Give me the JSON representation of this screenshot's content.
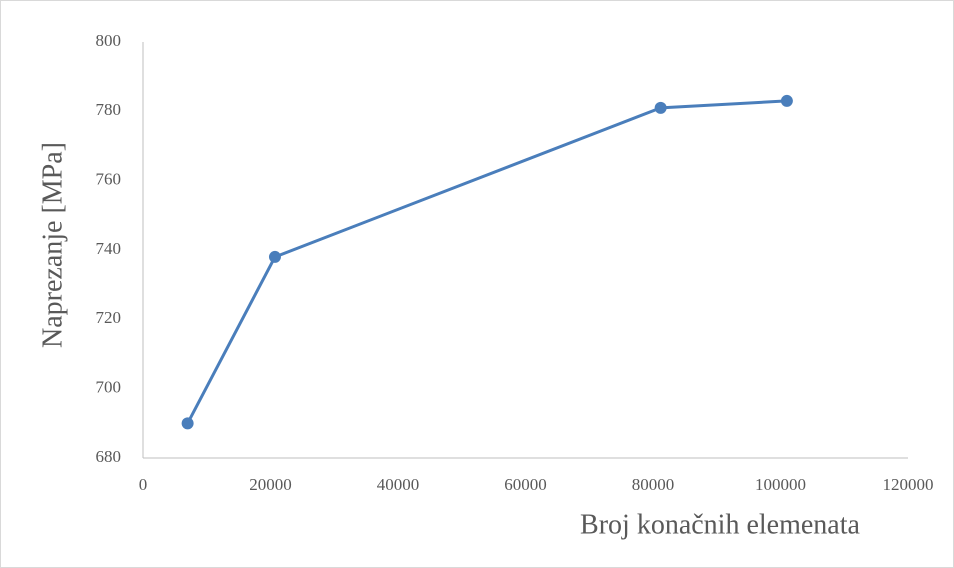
{
  "chart_data": {
    "type": "line",
    "x_label": "Broj konačnih elemenata",
    "y_label": "Naprezanje [MPa]",
    "x": [
      7000,
      20700,
      81200,
      101000
    ],
    "series": [
      {
        "name": "Naprezanje",
        "color": "#4a7ebb",
        "values": [
          690,
          738,
          781,
          783
        ]
      }
    ],
    "xlim": [
      0,
      120000
    ],
    "xticks": [
      0,
      20000,
      40000,
      60000,
      80000,
      100000,
      120000
    ],
    "ylim": [
      680,
      800
    ],
    "yticks": [
      680,
      700,
      720,
      740,
      760,
      780,
      800
    ],
    "grid": false
  }
}
